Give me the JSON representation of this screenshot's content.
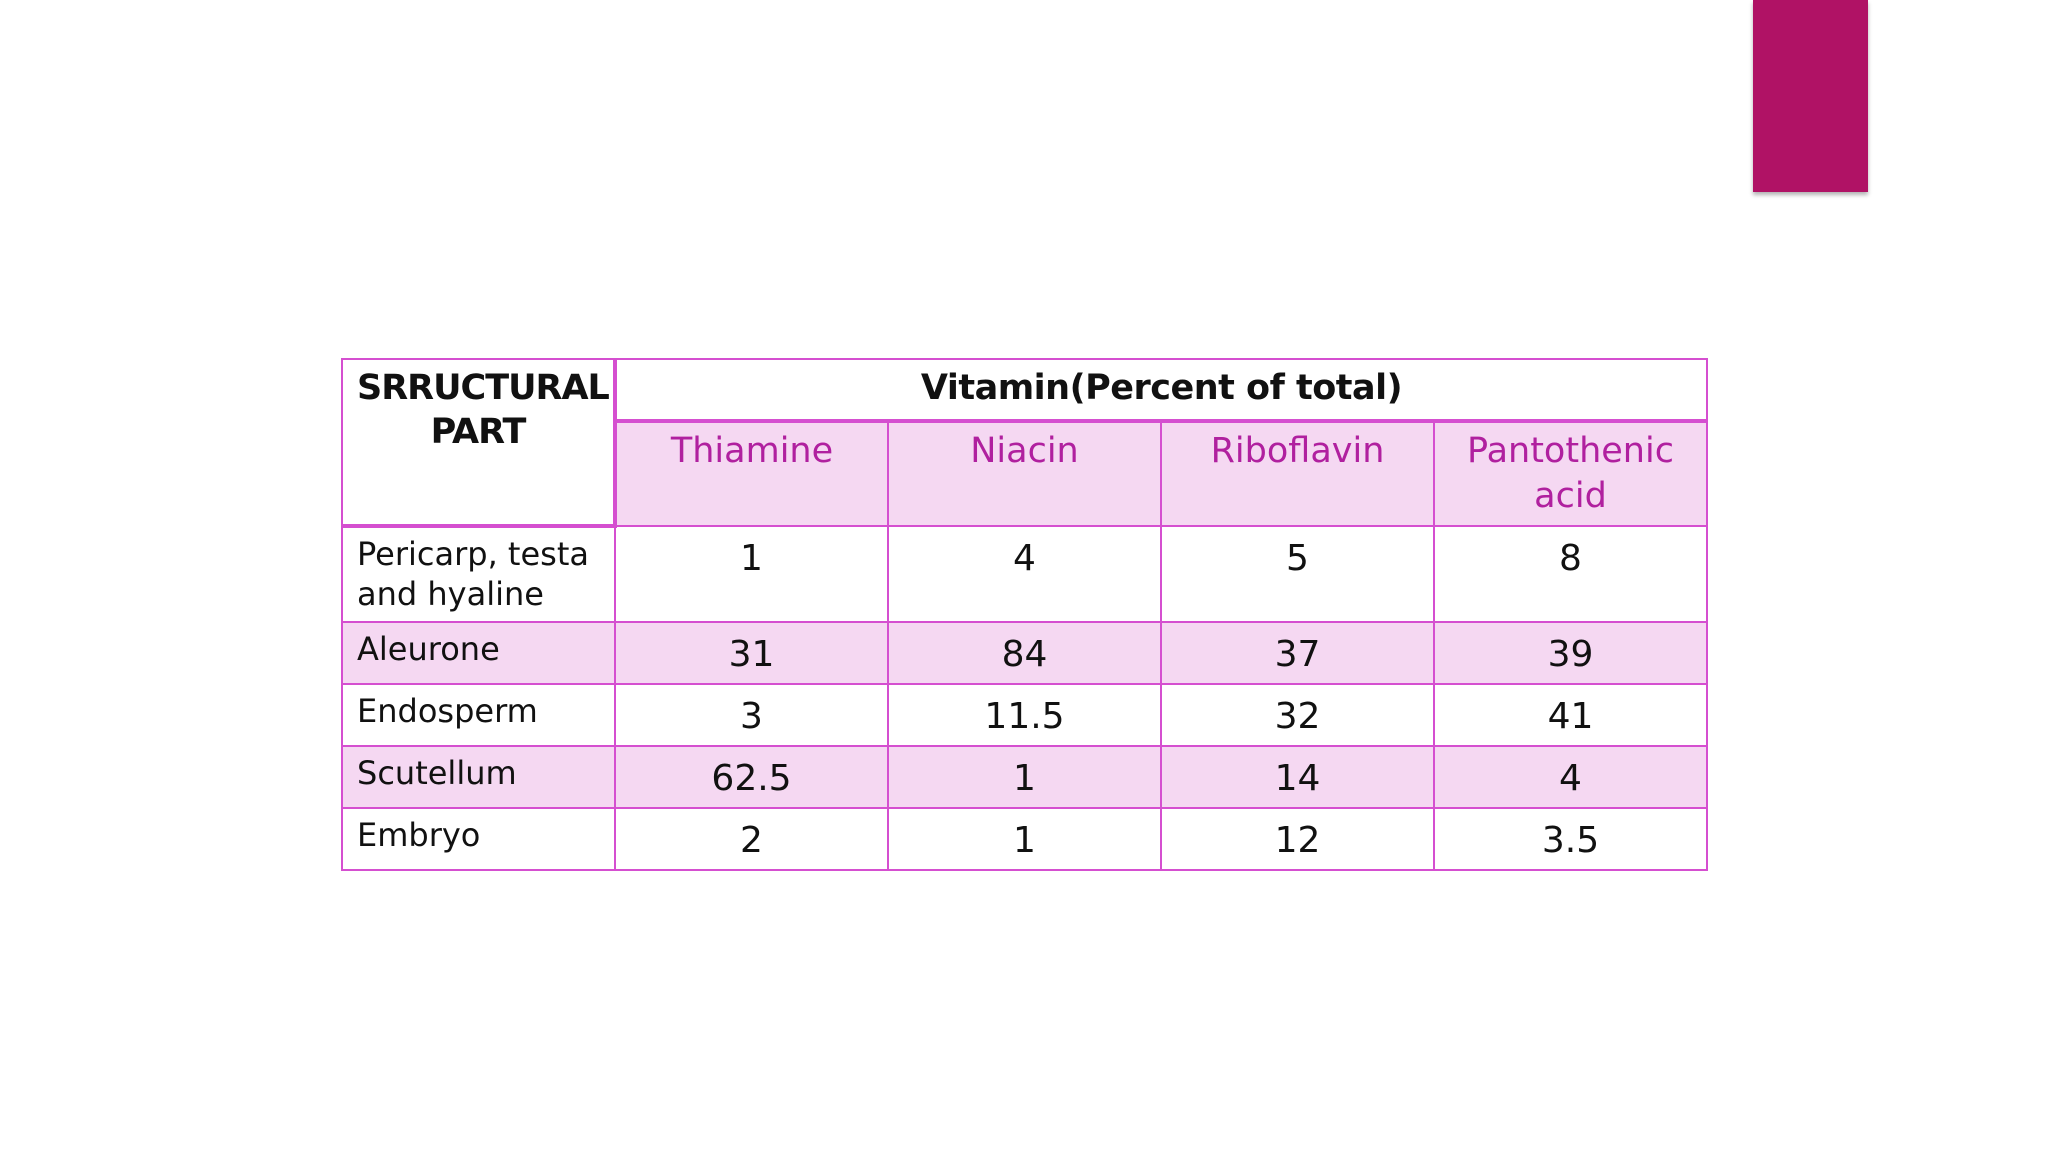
{
  "header": {
    "row_label": "SRRUCTURAL PART",
    "group_label": "Vitamin(Percent of total)",
    "columns": [
      "Thiamine",
      "Niacin",
      "Riboflavin",
      "Pantothenic acid"
    ]
  },
  "rows": [
    {
      "label": "Pericarp, testa and hyaline",
      "values": [
        "1",
        "4",
        "5",
        "8"
      ]
    },
    {
      "label": "Aleurone",
      "values": [
        "31",
        "84",
        "37",
        "39"
      ]
    },
    {
      "label": "Endosperm",
      "values": [
        "3",
        "11.5",
        "32",
        "41"
      ]
    },
    {
      "label": "Scutellum",
      "values": [
        "62.5",
        "1",
        "14",
        "4"
      ]
    },
    {
      "label": "Embryo",
      "values": [
        "2",
        "1",
        "12",
        "3.5"
      ]
    }
  ]
}
